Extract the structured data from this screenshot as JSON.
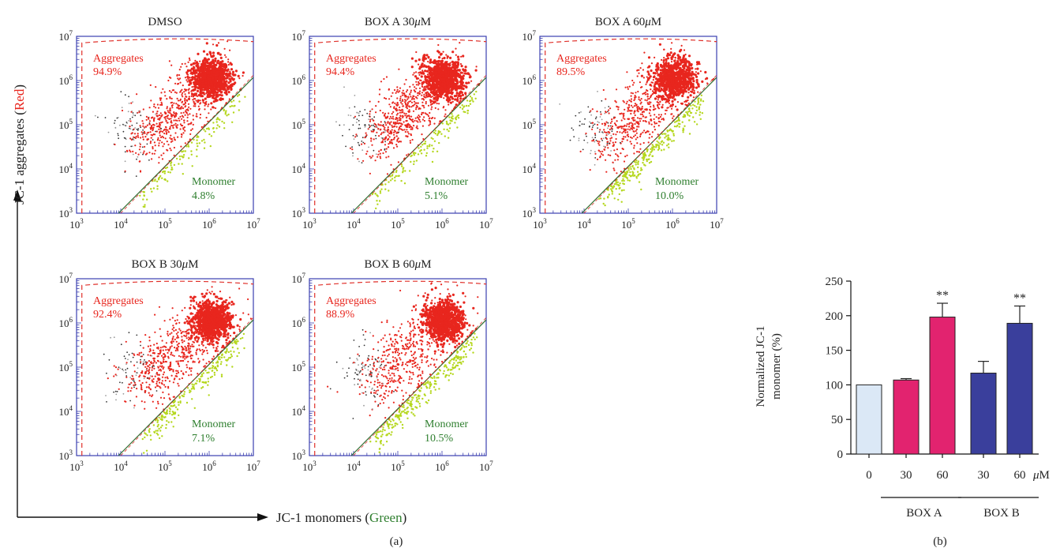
{
  "panel_a": {
    "label": "(a)",
    "y_axis": {
      "prefix": "JC-1 aggregates (",
      "color_word": "Red",
      "suffix": ")"
    },
    "x_axis": {
      "prefix": "JC-1 monomers (",
      "color_word": "Green",
      "suffix": ")"
    },
    "region_labels": {
      "aggregates": "Aggregates",
      "monomer": "Monomer"
    },
    "tick_labels": [
      "3",
      "4",
      "5",
      "6",
      "7"
    ],
    "tick_base": "10"
  },
  "panel_b": {
    "label": "(b)"
  },
  "colors": {
    "aggregates": "#e8261e",
    "monomer": "#b5d71e",
    "monomer_text": "#2f7f2f",
    "gate": "#e0302a",
    "axis_blue": "#3b3fb0",
    "unit_dots": "#2a2a2a",
    "bar_control": "#dbe8f6",
    "bar_box_a": "#e2236f",
    "bar_box_b": "#3a3f9c"
  },
  "chart_data": [
    {
      "type": "scatter",
      "title": "DMSO",
      "xscale": "log",
      "yscale": "log",
      "xlim": [
        1000,
        10000000
      ],
      "ylim": [
        1000,
        10000000
      ],
      "gates": [
        {
          "name": "Aggregates",
          "percent": "94.9%"
        },
        {
          "name": "Monomer",
          "percent": "4.8%"
        }
      ]
    },
    {
      "type": "scatter",
      "title_prefix": "BOX A 30",
      "title_unit": "μ",
      "title_suffix": "M",
      "xscale": "log",
      "yscale": "log",
      "xlim": [
        1000,
        10000000
      ],
      "ylim": [
        1000,
        10000000
      ],
      "gates": [
        {
          "name": "Aggregates",
          "percent": "94.4%"
        },
        {
          "name": "Monomer",
          "percent": "5.1%"
        }
      ]
    },
    {
      "type": "scatter",
      "title_prefix": "BOX A 60",
      "title_unit": "μ",
      "title_suffix": "M",
      "xscale": "log",
      "yscale": "log",
      "xlim": [
        1000,
        10000000
      ],
      "ylim": [
        1000,
        10000000
      ],
      "gates": [
        {
          "name": "Aggregates",
          "percent": "89.5%"
        },
        {
          "name": "Monomer",
          "percent": "10.0%"
        }
      ]
    },
    {
      "type": "scatter",
      "title_prefix": "BOX B 30",
      "title_unit": "μ",
      "title_suffix": "M",
      "xscale": "log",
      "yscale": "log",
      "xlim": [
        1000,
        10000000
      ],
      "ylim": [
        1000,
        10000000
      ],
      "gates": [
        {
          "name": "Aggregates",
          "percent": "92.4%"
        },
        {
          "name": "Monomer",
          "percent": "7.1%"
        }
      ]
    },
    {
      "type": "scatter",
      "title_prefix": "BOX B 60",
      "title_unit": "μ",
      "title_suffix": "M",
      "xscale": "log",
      "yscale": "log",
      "xlim": [
        1000,
        10000000
      ],
      "ylim": [
        1000,
        10000000
      ],
      "gates": [
        {
          "name": "Aggregates",
          "percent": "88.9%"
        },
        {
          "name": "Monomer",
          "percent": "10.5%"
        }
      ]
    },
    {
      "type": "bar",
      "ylabel_line1": "Normalized JC-1",
      "ylabel_line2": "monomer (%)",
      "ylim": [
        0,
        250
      ],
      "yticks": [
        "0",
        "50",
        "100",
        "150",
        "200",
        "250"
      ],
      "categories": [
        "0",
        "30",
        "60",
        "30",
        "60"
      ],
      "unit_prefix": "μ",
      "unit_suffix": "M",
      "groups": [
        "BOX A",
        "BOX B"
      ],
      "values": [
        100,
        107,
        198,
        117,
        189
      ],
      "errors": [
        0,
        2,
        20,
        17,
        25
      ],
      "significance": [
        "",
        "",
        "**",
        "",
        "**"
      ],
      "bar_colors": [
        "bar_control",
        "bar_box_a",
        "bar_box_a",
        "bar_box_b",
        "bar_box_b"
      ]
    }
  ]
}
